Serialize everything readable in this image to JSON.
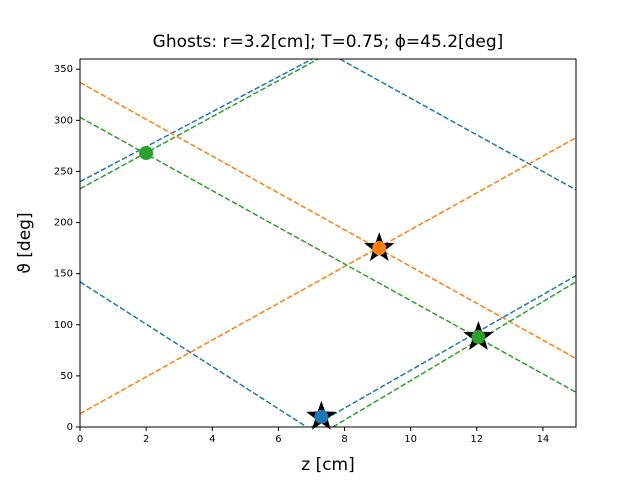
{
  "chart_data": {
    "type": "line",
    "title": "Ghosts: r=3.2[cm]; T=0.75; ϕ=45.2[deg]",
    "x_label": "z [cm]",
    "y_label": "ϑ [deg]",
    "xlim": [
      0,
      15
    ],
    "ylim": [
      0,
      360
    ],
    "xticks": [
      0,
      2,
      4,
      6,
      8,
      10,
      12,
      14
    ],
    "yticks": [
      0,
      50,
      100,
      150,
      200,
      250,
      300,
      350
    ],
    "series": [
      {
        "color": "#1f77b4",
        "line": "dashed",
        "x": [
          0,
          7.02
        ],
        "values": [
          240,
          360
        ]
      },
      {
        "color": "#1f77b4",
        "line": "dashed",
        "x": [
          7.86,
          15
        ],
        "values": [
          360,
          232
        ]
      },
      {
        "color": "#1f77b4",
        "line": "dashed",
        "x": [
          0,
          6.86
        ],
        "values": [
          142,
          0
        ]
      },
      {
        "color": "#1f77b4",
        "line": "dashed",
        "x": [
          7.0,
          15
        ],
        "values": [
          0,
          148
        ]
      },
      {
        "color": "#ff7f0e",
        "line": "dashed",
        "x": [
          0,
          15
        ],
        "values": [
          337,
          67
        ]
      },
      {
        "color": "#ff7f0e",
        "line": "dashed",
        "x": [
          0,
          15
        ],
        "values": [
          13,
          283
        ]
      },
      {
        "color": "#2ca02c",
        "line": "dashed",
        "x": [
          0,
          7.2
        ],
        "values": [
          233,
          360
        ]
      },
      {
        "color": "#2ca02c",
        "line": "dashed",
        "x": [
          0,
          15
        ],
        "values": [
          303,
          34
        ]
      },
      {
        "color": "#2ca02c",
        "line": "dashed",
        "x": [
          7.65,
          15
        ],
        "values": [
          0,
          142
        ]
      },
      {
        "color": "#000000",
        "marker": "star",
        "x": [
          7.3,
          9.05,
          12.05
        ],
        "values": [
          10,
          175,
          88
        ]
      },
      {
        "color": "#1f77b4",
        "marker": "circle",
        "x": [
          7.3
        ],
        "values": [
          10
        ]
      },
      {
        "color": "#ff7f0e",
        "marker": "circle",
        "x": [
          9.05
        ],
        "values": [
          175
        ]
      },
      {
        "color": "#2ca02c",
        "marker": "circle",
        "x": [
          2,
          12.05
        ],
        "values": [
          268,
          88
        ]
      }
    ]
  }
}
